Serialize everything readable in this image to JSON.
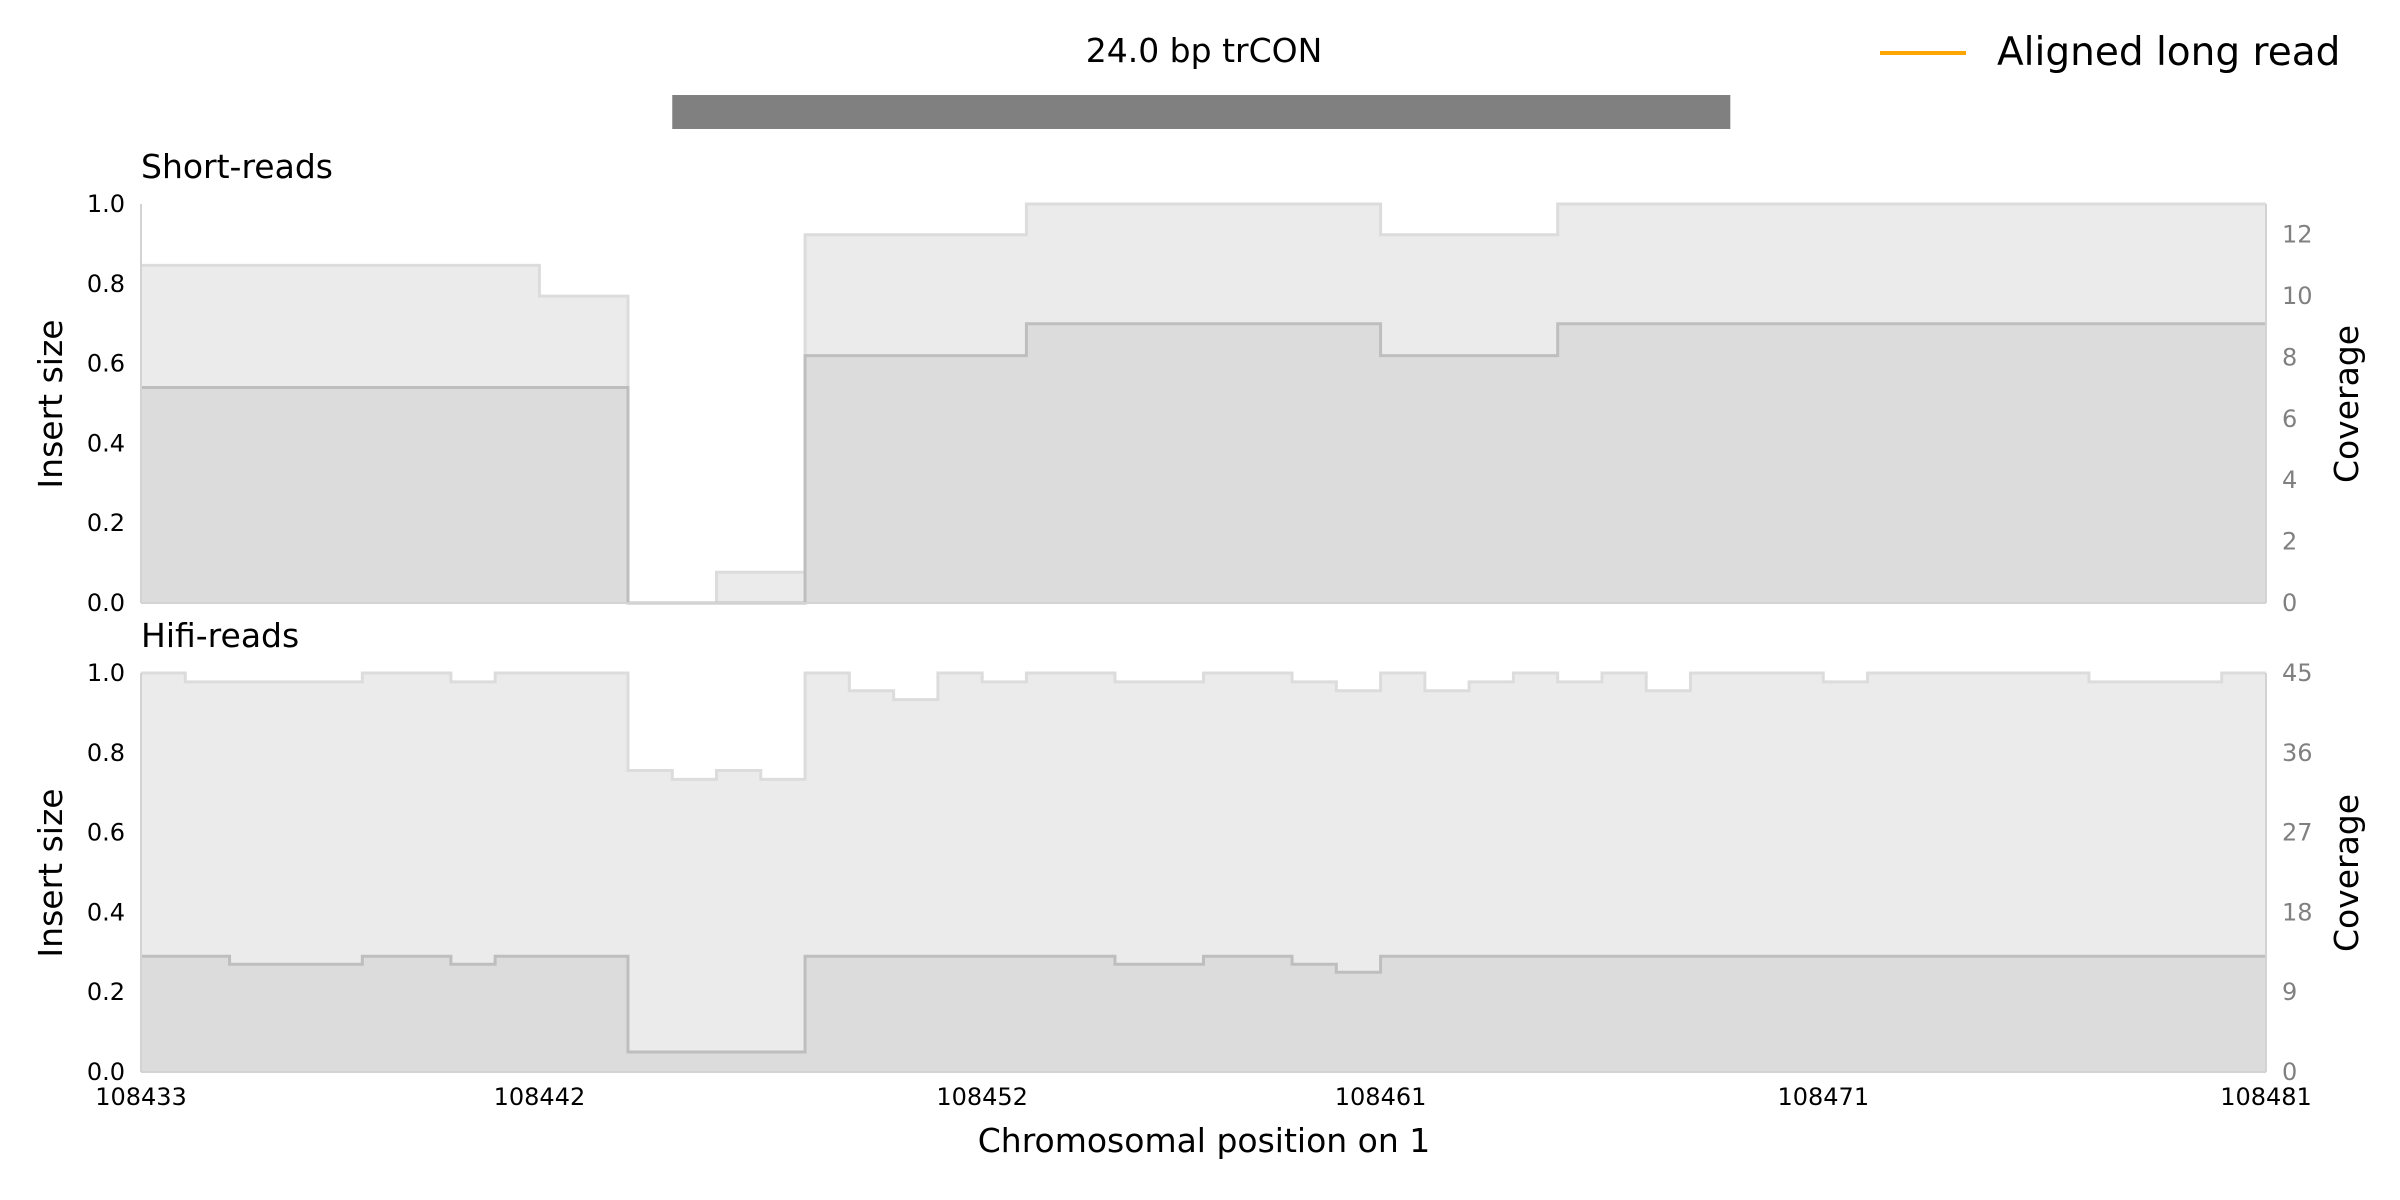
{
  "title": "24.0 bp trCON",
  "legend": {
    "label": "Aligned long read",
    "color": "#FFA500",
    "placement": "top-right"
  },
  "colors": {
    "trcon_bar": "#808080",
    "coverage_fill": "#EBEBEB",
    "coverage_line": "#DCDCDC",
    "insert_fill": "#DCDCDC",
    "insert_line": "#BEBEBE",
    "spine": "#D3D3D3"
  },
  "chart_data": {
    "type": "area",
    "xlabel": "Chromosomal position on 1",
    "xlim": [
      108433,
      108481
    ],
    "x_ticks": [
      "108433",
      "108442",
      "108452",
      "108461",
      "108471",
      "108481"
    ],
    "trcon_region": [
      108445,
      108468.9
    ],
    "panels": [
      {
        "name": "Short-reads",
        "ylabel_left": "Insert size",
        "ylabel_right": "Coverage",
        "ylim_left": [
          0,
          1.0
        ],
        "ylim_right": [
          0,
          13
        ],
        "y_ticks_left": [
          "0.0",
          "0.2",
          "0.4",
          "0.6",
          "0.8",
          "1.0"
        ],
        "y_ticks_right": [
          "0",
          "2",
          "4",
          "6",
          "8",
          "10",
          "12"
        ],
        "coverage_steps": [
          [
            108433,
            11
          ],
          [
            108442,
            10
          ],
          [
            108444,
            0
          ],
          [
            108446,
            1
          ],
          [
            108448,
            12
          ],
          [
            108453,
            13
          ],
          [
            108461,
            12
          ],
          [
            108465,
            13
          ]
        ],
        "insert_steps": [
          [
            108433,
            0.54
          ],
          [
            108444,
            0
          ],
          [
            108448,
            0.62
          ],
          [
            108453,
            0.7
          ],
          [
            108461,
            0.62
          ],
          [
            108465,
            0.7
          ]
        ]
      },
      {
        "name": "Hifi-reads",
        "ylabel_left": "Insert size",
        "ylabel_right": "Coverage",
        "ylim_left": [
          0,
          1.0
        ],
        "ylim_right": [
          0,
          45
        ],
        "y_ticks_left": [
          "0.0",
          "0.2",
          "0.4",
          "0.6",
          "0.8",
          "1.0"
        ],
        "y_ticks_right": [
          "0",
          "9",
          "18",
          "27",
          "36",
          "45"
        ],
        "coverage_steps": [
          [
            108433,
            45
          ],
          [
            108434,
            44
          ],
          [
            108438,
            45
          ],
          [
            108440,
            44
          ],
          [
            108441,
            45
          ],
          [
            108444,
            34
          ],
          [
            108445,
            33
          ],
          [
            108446,
            34
          ],
          [
            108447,
            33
          ],
          [
            108448,
            45
          ],
          [
            108449,
            43
          ],
          [
            108450,
            42
          ],
          [
            108451,
            45
          ],
          [
            108452,
            44
          ],
          [
            108453,
            45
          ],
          [
            108455,
            44
          ],
          [
            108457,
            45
          ],
          [
            108459,
            44
          ],
          [
            108460,
            43
          ],
          [
            108461,
            45
          ],
          [
            108462,
            43
          ],
          [
            108463,
            44
          ],
          [
            108464,
            45
          ],
          [
            108465,
            44
          ],
          [
            108466,
            45
          ],
          [
            108467,
            43
          ],
          [
            108468,
            45
          ],
          [
            108471,
            44
          ],
          [
            108472,
            45
          ],
          [
            108477,
            44
          ],
          [
            108480,
            45
          ]
        ],
        "insert_steps": [
          [
            108433,
            0.29
          ],
          [
            108435,
            0.27
          ],
          [
            108438,
            0.29
          ],
          [
            108440,
            0.27
          ],
          [
            108441,
            0.29
          ],
          [
            108444,
            0.05
          ],
          [
            108448,
            0.29
          ],
          [
            108455,
            0.27
          ],
          [
            108457,
            0.29
          ],
          [
            108459,
            0.27
          ],
          [
            108460,
            0.25
          ],
          [
            108461,
            0.29
          ]
        ]
      }
    ]
  }
}
